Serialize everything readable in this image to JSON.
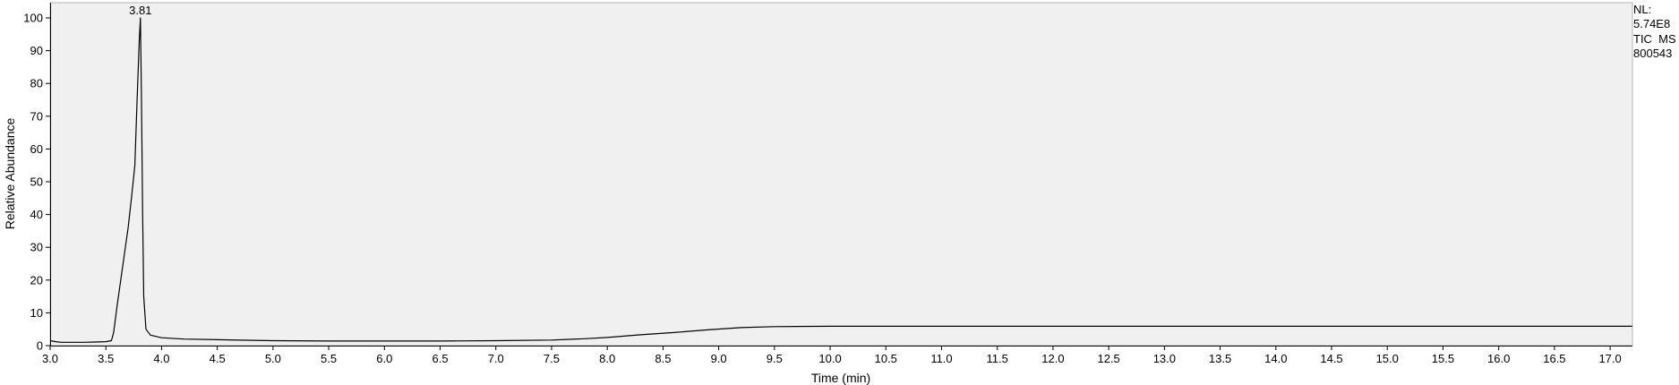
{
  "chart_data": {
    "type": "line",
    "xlabel": "Time (min)",
    "ylabel": "Relative Abundance",
    "xlim": [
      3.0,
      17.2
    ],
    "ylim": [
      0,
      100
    ],
    "x_ticks": [
      "3.0",
      "3.5",
      "4.0",
      "4.5",
      "5.0",
      "5.5",
      "6.0",
      "6.5",
      "7.0",
      "7.5",
      "8.0",
      "8.5",
      "9.0",
      "9.5",
      "10.0",
      "10.5",
      "11.0",
      "11.5",
      "12.0",
      "12.5",
      "13.0",
      "13.5",
      "14.0",
      "14.5",
      "15.0",
      "15.5",
      "16.0",
      "16.5",
      "17.0"
    ],
    "y_ticks": [
      "0",
      "10",
      "20",
      "30",
      "40",
      "50",
      "60",
      "70",
      "80",
      "90",
      "100"
    ],
    "grid": false,
    "peak_labels": [
      {
        "x": 3.81,
        "y": 100,
        "text": "3.81"
      }
    ],
    "series": [
      {
        "x": [
          3.0,
          3.05,
          3.1,
          3.2,
          3.3,
          3.4,
          3.5,
          3.55,
          3.57,
          3.6,
          3.65,
          3.7,
          3.73,
          3.76,
          3.78,
          3.8,
          3.81,
          3.82,
          3.83,
          3.84,
          3.86,
          3.9,
          4.0,
          4.2,
          4.5,
          5.0,
          5.5,
          6.0,
          6.5,
          7.0,
          7.5,
          7.8,
          8.0,
          8.3,
          8.6,
          8.9,
          9.2,
          9.5,
          10.0,
          11.0,
          12.0,
          13.0,
          14.0,
          15.0,
          16.0,
          17.0,
          17.2
        ],
        "y": [
          1.5,
          1.2,
          1.0,
          1.0,
          1.0,
          1.1,
          1.2,
          1.5,
          4,
          12,
          24,
          36,
          45,
          55,
          75,
          93,
          100,
          75,
          40,
          15,
          5,
          3.2,
          2.4,
          2.0,
          1.8,
          1.5,
          1.4,
          1.4,
          1.4,
          1.5,
          1.7,
          2.1,
          2.5,
          3.3,
          4.0,
          4.8,
          5.5,
          5.8,
          5.9,
          5.9,
          5.9,
          5.9,
          5.9,
          5.9,
          5.9,
          5.9,
          5.9
        ]
      }
    ]
  },
  "info": {
    "nl_label": "NL:",
    "nl_value": "5.74E8",
    "trace_label": "TIC  MS",
    "sample_id": "800543"
  }
}
